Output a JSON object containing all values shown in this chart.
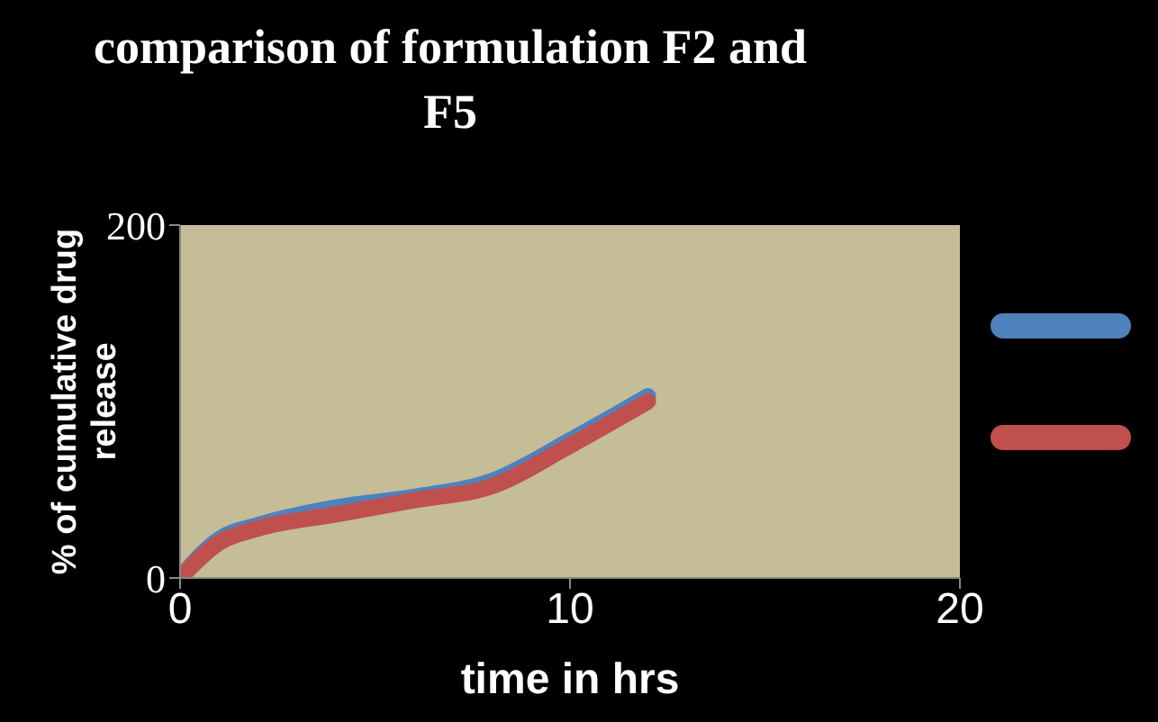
{
  "chart_data": {
    "type": "line",
    "title": "comparison of formulation F2 and F5",
    "xlabel": "time in hrs",
    "ylabel": "% of cumulative drug release",
    "series": [
      {
        "color": "#4f81bd",
        "x": [
          0,
          1,
          2,
          4,
          6,
          8,
          10,
          12
        ],
        "values": [
          0,
          22,
          30,
          40,
          46,
          55,
          78,
          103
        ]
      },
      {
        "color": "#c0504d",
        "x": [
          0,
          1,
          2,
          4,
          6,
          8,
          10,
          12
        ],
        "values": [
          0,
          20,
          28,
          36,
          44,
          52,
          75,
          100
        ]
      }
    ],
    "xlim": [
      0,
      20
    ],
    "xticks": [
      0,
      10,
      20
    ],
    "ylim": [
      0,
      200
    ],
    "yticks": [
      0,
      200
    ],
    "grid": false,
    "marker": "none",
    "line_style": "solid"
  }
}
